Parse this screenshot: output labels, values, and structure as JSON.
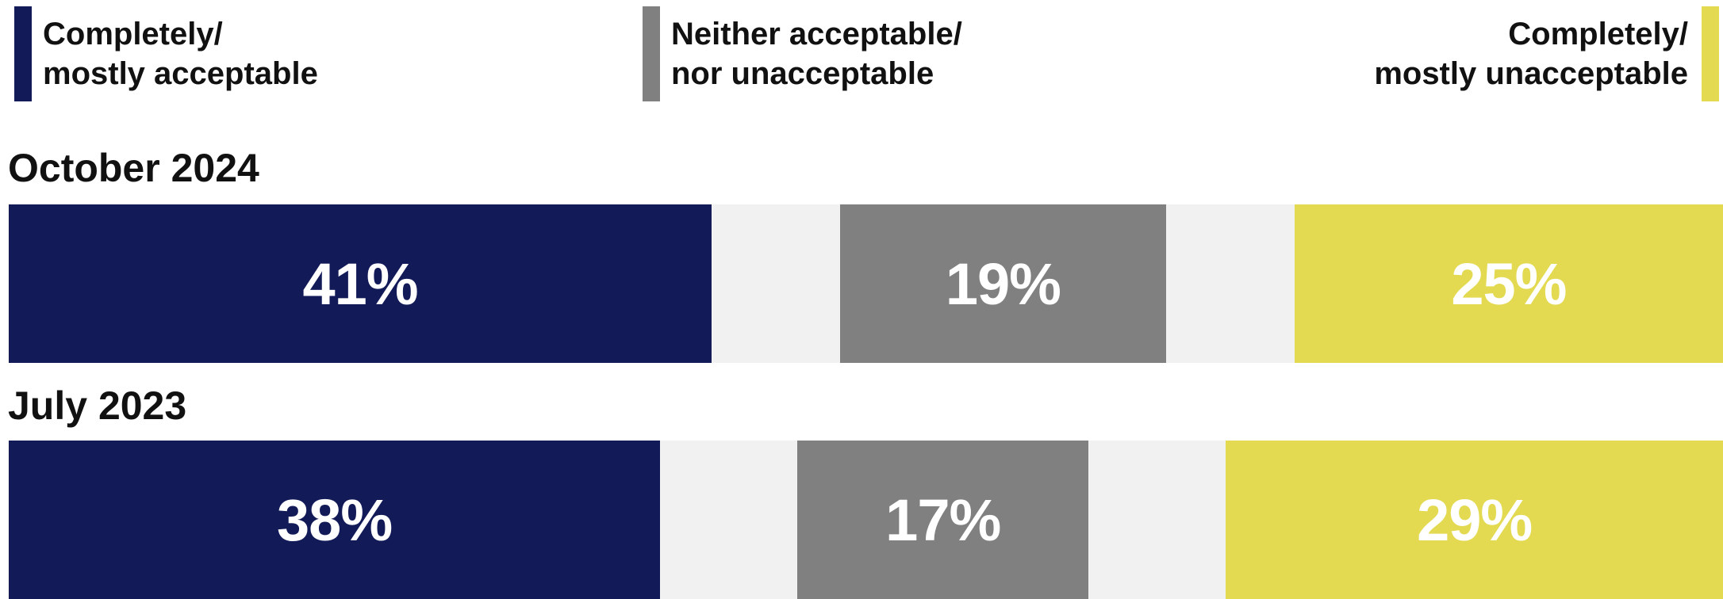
{
  "legend": {
    "items": [
      {
        "line1": "Completely/",
        "line2": "mostly acceptable",
        "color": "#121a58"
      },
      {
        "line1": "Neither acceptable/",
        "line2": "nor unacceptable",
        "color": "#808080"
      },
      {
        "line1": "Completely/",
        "line2": "mostly unacceptable",
        "color": "#e3da52"
      }
    ]
  },
  "colors": {
    "track": "#f1f1f1",
    "acceptable": "#121a58",
    "neither": "#808080",
    "unacceptable": "#e3da52"
  },
  "chart_data": {
    "type": "bar",
    "orientation": "horizontal",
    "categories": [
      "October 2024",
      "July 2023"
    ],
    "series": [
      {
        "name": "Completely/ mostly acceptable",
        "values": [
          41,
          38
        ],
        "labels": [
          "41%",
          "38%"
        ]
      },
      {
        "name": "Neither acceptable/ nor unacceptable",
        "values": [
          19,
          17
        ],
        "labels": [
          "19%",
          "17%"
        ]
      },
      {
        "name": "Completely/ mostly unacceptable",
        "values": [
          25,
          29
        ],
        "labels": [
          "25%",
          "29%"
        ]
      }
    ],
    "unit": "%",
    "legend_position": "top"
  }
}
